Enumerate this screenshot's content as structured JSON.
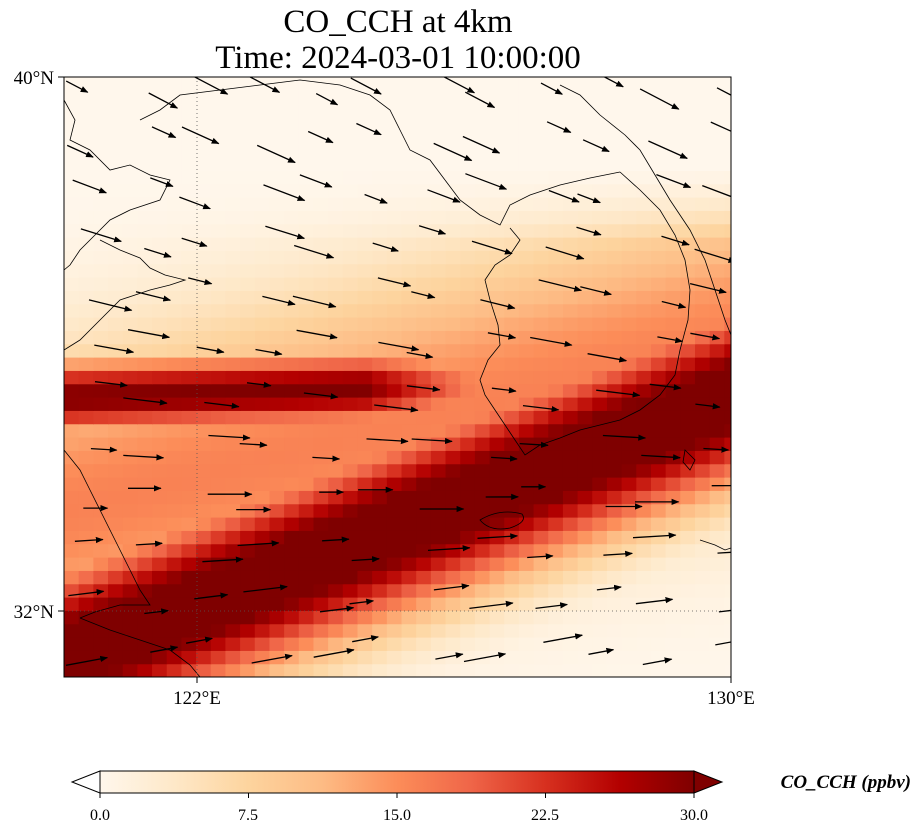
{
  "title": {
    "line1": "CO_CCH at 4km",
    "line2": "Time: 2024-03-01 10:00:00"
  },
  "axes": {
    "lat_ticks": [
      "40°N",
      "32°N"
    ],
    "lon_ticks": [
      "122°E",
      "130°E"
    ],
    "lat_range": [
      31,
      40
    ],
    "lon_range": [
      120,
      130
    ],
    "gridlines": "dotted"
  },
  "colorbar": {
    "label": "CO_CCH (ppbv)",
    "ticks": [
      "0.0",
      "7.5",
      "15.0",
      "22.5",
      "30.0"
    ],
    "range": [
      0,
      30
    ],
    "extend": "both",
    "colors": [
      "#fff7ec",
      "#fee8c8",
      "#fdd49e",
      "#fdbb84",
      "#fc8d59",
      "#ef6548",
      "#d7301f",
      "#b30000",
      "#7f0000"
    ]
  },
  "chart_data": {
    "type": "heatmap",
    "title": "CO_CCH at 4km",
    "subtitle": "Time: 2024-03-01 10:00:00",
    "units": "ppbv",
    "x_axis": "longitude",
    "y_axis": "latitude",
    "xlim": [
      120,
      130
    ],
    "ylim": [
      31,
      40
    ],
    "value_range": [
      0,
      30
    ],
    "features": [
      {
        "name": "maximum plume",
        "from_lon_lat": [
          120,
          31.2
        ],
        "to_lon_lat": [
          130,
          35.0
        ],
        "approx_value": 30
      },
      {
        "name": "secondary band",
        "from_lon_lat": [
          120,
          35.0
        ],
        "to_lon_lat": [
          127,
          35.5
        ],
        "approx_value": 27
      },
      {
        "name": "low background north",
        "approx_value": 1
      }
    ],
    "wind_vectors": "uniform field, direction east-southeast in the north turning to east-northeast in the south"
  }
}
